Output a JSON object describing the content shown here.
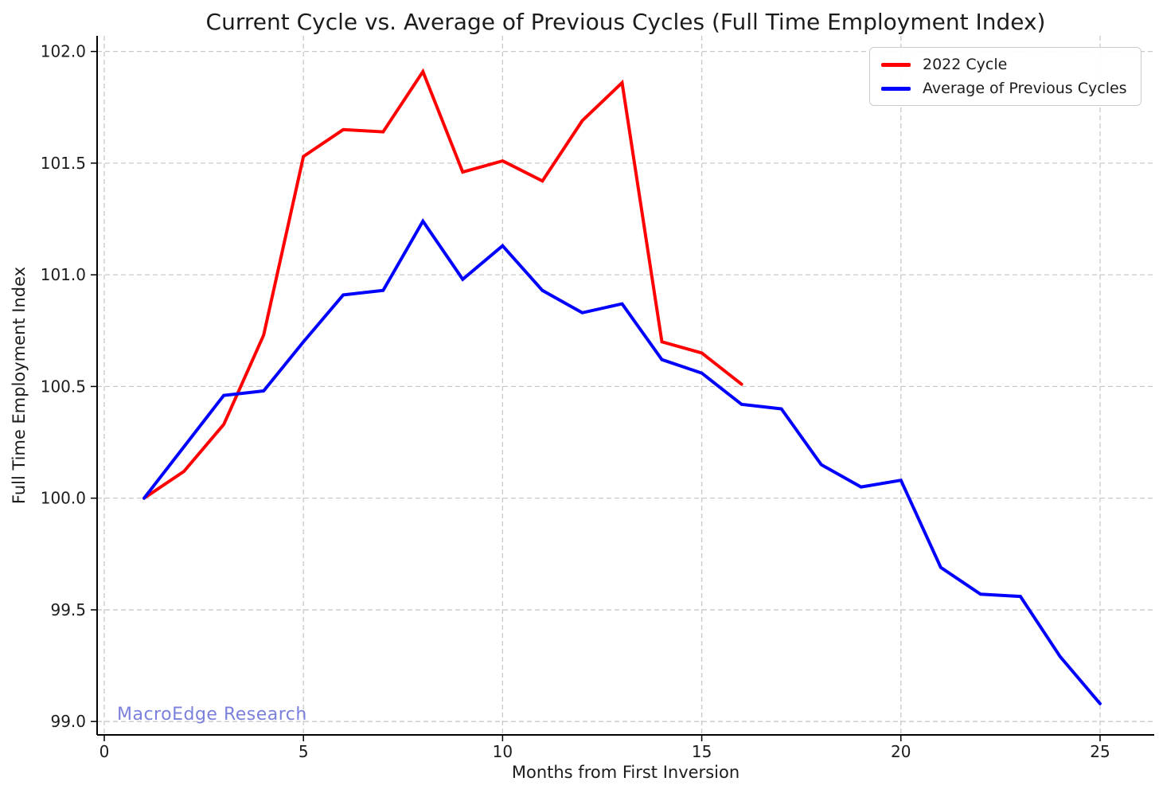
{
  "chart_data": {
    "type": "line",
    "title": "Current Cycle vs. Average of Previous Cycles (Full Time Employment Index)",
    "xlabel": "Months from First Inversion",
    "ylabel": "Full Time Employment Index",
    "watermark": "MacroEdge Research",
    "grid": true,
    "legend_position": "upper right",
    "xlim": [
      -0.18,
      26.36
    ],
    "ylim": [
      98.94,
      102.07
    ],
    "x_ticks": [
      0,
      5,
      10,
      15,
      20,
      25
    ],
    "x_tick_labels": [
      "0",
      "5",
      "10",
      "15",
      "20",
      "25"
    ],
    "y_ticks": [
      99.0,
      99.5,
      100.0,
      100.5,
      101.0,
      101.5,
      102.0
    ],
    "y_tick_labels": [
      "99.0",
      "99.5",
      "100.0",
      "100.5",
      "101.0",
      "101.5",
      "102.0"
    ],
    "style": {
      "grid_color": "#c9c9c9",
      "axis_color": "#000000",
      "text_color": "#1c1c1c",
      "watermark_color": "#7b80dd",
      "legend_border_color": "#cccccc",
      "background": "#ffffff",
      "line_width": 4
    },
    "series": [
      {
        "name": "2022 Cycle",
        "color": "#ff0000",
        "x": [
          1,
          2,
          3,
          4,
          5,
          6,
          7,
          8,
          9,
          10,
          11,
          12,
          13,
          14,
          15,
          16
        ],
        "values": [
          100.0,
          100.12,
          100.33,
          100.73,
          101.53,
          101.65,
          101.64,
          101.91,
          101.46,
          101.51,
          101.42,
          101.69,
          101.86,
          100.7,
          100.65,
          100.51
        ]
      },
      {
        "name": "Average of Previous Cycles",
        "color": "#0000ff",
        "x": [
          1,
          2,
          3,
          4,
          5,
          6,
          7,
          8,
          9,
          10,
          11,
          12,
          13,
          14,
          15,
          16,
          17,
          18,
          19,
          20,
          21,
          22,
          23,
          24,
          25
        ],
        "values": [
          100.0,
          100.23,
          100.46,
          100.48,
          100.7,
          100.91,
          100.93,
          101.24,
          100.98,
          101.13,
          100.93,
          100.83,
          100.87,
          100.62,
          100.56,
          100.42,
          100.4,
          100.15,
          100.05,
          100.08,
          99.69,
          99.57,
          99.56,
          99.29,
          99.08
        ]
      }
    ]
  }
}
